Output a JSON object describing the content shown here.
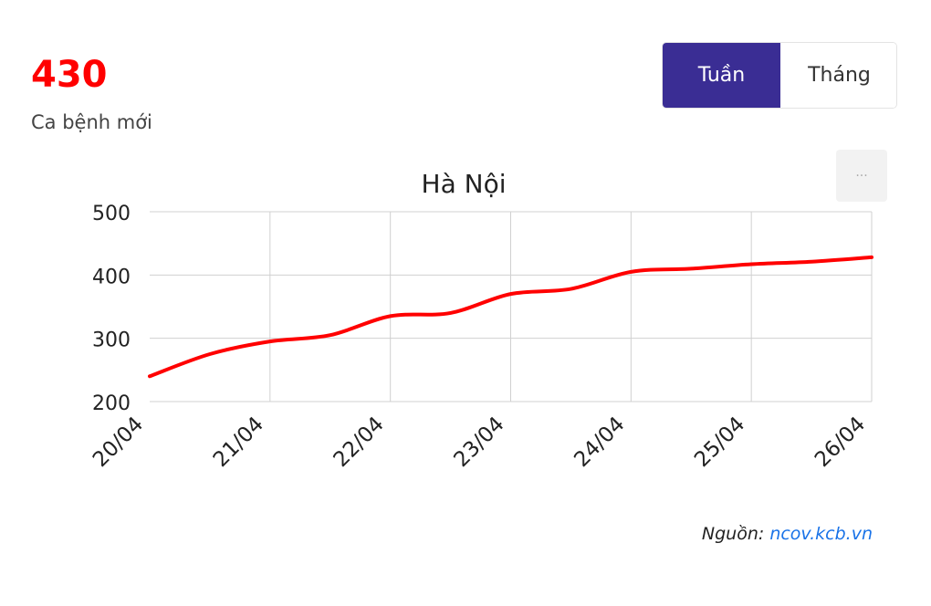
{
  "stat": {
    "value": "430",
    "label": "Ca bệnh mới"
  },
  "toggle": {
    "options": [
      "Tuần",
      "Tháng"
    ],
    "selected": "Tuần"
  },
  "menu": {
    "label": "···"
  },
  "source": {
    "prefix": "Nguồn:",
    "link_text": "ncov.kcb.vn"
  },
  "colors": {
    "line": "#ff0000",
    "accent": "#3a2d94",
    "grid": "#d0d0d0"
  },
  "chart_data": {
    "type": "line",
    "title": "Hà Nội",
    "xlabel": "",
    "ylabel": "",
    "categories": [
      "20/04",
      "21/04",
      "22/04",
      "23/04",
      "24/04",
      "25/04",
      "26/04"
    ],
    "x": [
      0,
      0.5,
      1,
      1.5,
      2,
      2.5,
      3,
      3.5,
      4,
      4.5,
      5,
      5.5,
      6
    ],
    "series": [
      {
        "name": "",
        "values": [
          240,
          275,
          295,
          305,
          335,
          340,
          370,
          378,
          405,
          410,
          417,
          421,
          428
        ]
      }
    ],
    "yticks": [
      200,
      300,
      400,
      500
    ],
    "ylim": [
      200,
      500
    ],
    "grid": true,
    "legend": "none"
  }
}
